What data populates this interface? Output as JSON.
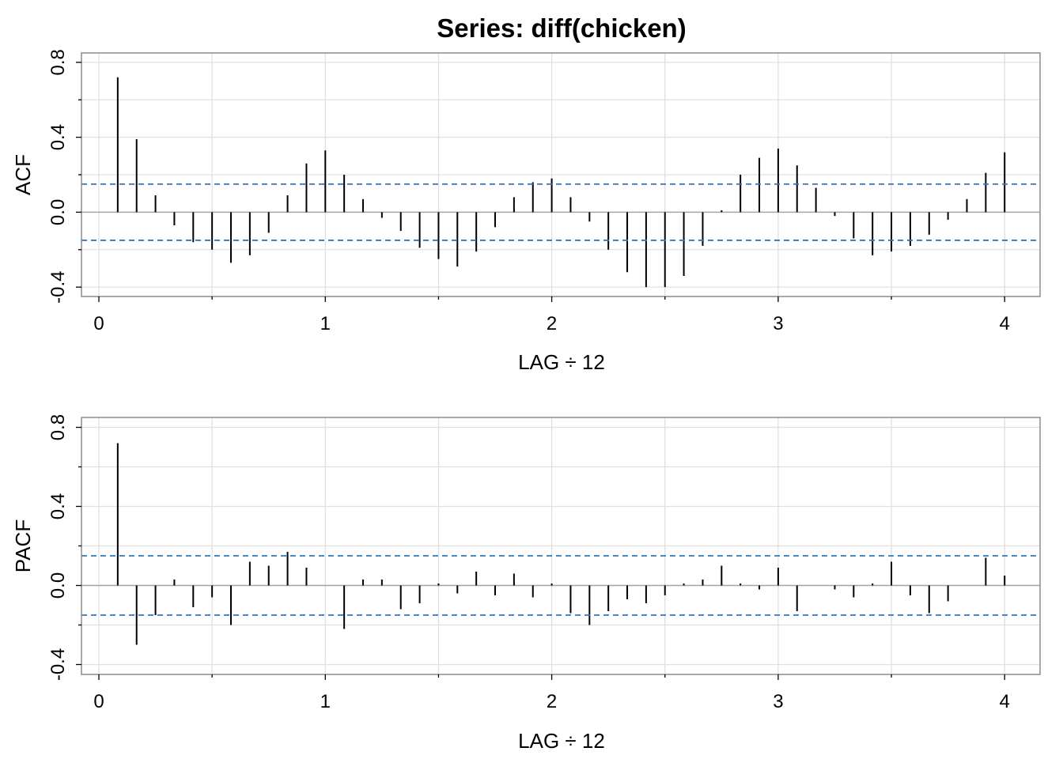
{
  "title": "Series:  diff(chicken)",
  "colors": {
    "panel_border": "#8c8c8c",
    "grid": "#e0e0e0",
    "zero_line": "#a6a6a6",
    "bar": "#000000",
    "ci_line": "#2f77bf"
  },
  "chart_data": [
    {
      "type": "bar",
      "title": "Series:  diff(chicken)",
      "xlabel": "LAG ÷ 12",
      "ylabel": "ACF",
      "xlim": [
        0,
        4.15
      ],
      "ylim": [
        -0.45,
        0.85
      ],
      "xticks": [
        0,
        1,
        2,
        3,
        4
      ],
      "yticks": [
        -0.4,
        0.0,
        0.4,
        0.8
      ],
      "grid": true,
      "ci": 0.15,
      "lags": [
        0.0833,
        0.1667,
        0.25,
        0.3333,
        0.4167,
        0.5,
        0.5833,
        0.6667,
        0.75,
        0.8333,
        0.9167,
        1.0,
        1.0833,
        1.1667,
        1.25,
        1.3333,
        1.4167,
        1.5,
        1.5833,
        1.6667,
        1.75,
        1.8333,
        1.9167,
        2.0,
        2.0833,
        2.1667,
        2.25,
        2.3333,
        2.4167,
        2.5,
        2.5833,
        2.6667,
        2.75,
        2.8333,
        2.9167,
        3.0,
        3.0833,
        3.1667,
        3.25,
        3.3333,
        3.4167,
        3.5,
        3.5833,
        3.6667,
        3.75,
        3.8333,
        3.9167,
        4.0
      ],
      "values": [
        0.72,
        0.39,
        0.09,
        -0.07,
        -0.16,
        -0.2,
        -0.27,
        -0.23,
        -0.11,
        0.09,
        0.26,
        0.33,
        0.2,
        0.07,
        -0.03,
        -0.1,
        -0.19,
        -0.25,
        -0.29,
        -0.21,
        -0.08,
        0.08,
        0.16,
        0.18,
        0.08,
        -0.05,
        -0.2,
        -0.32,
        -0.4,
        -0.4,
        -0.34,
        -0.18,
        0.01,
        0.2,
        0.29,
        0.34,
        0.25,
        0.13,
        -0.02,
        -0.14,
        -0.23,
        -0.21,
        -0.18,
        -0.12,
        -0.04,
        0.07,
        0.21,
        0.32
      ]
    },
    {
      "type": "bar",
      "xlabel": "LAG ÷ 12",
      "ylabel": "PACF",
      "xlim": [
        0,
        4.15
      ],
      "ylim": [
        -0.45,
        0.85
      ],
      "xticks": [
        0,
        1,
        2,
        3,
        4
      ],
      "yticks": [
        -0.4,
        0.0,
        0.4,
        0.8
      ],
      "grid": true,
      "ci": 0.15,
      "lags": [
        0.0833,
        0.1667,
        0.25,
        0.3333,
        0.4167,
        0.5,
        0.5833,
        0.6667,
        0.75,
        0.8333,
        0.9167,
        1.0,
        1.0833,
        1.1667,
        1.25,
        1.3333,
        1.4167,
        1.5,
        1.5833,
        1.6667,
        1.75,
        1.8333,
        1.9167,
        2.0,
        2.0833,
        2.1667,
        2.25,
        2.3333,
        2.4167,
        2.5,
        2.5833,
        2.6667,
        2.75,
        2.8333,
        2.9167,
        3.0,
        3.0833,
        3.1667,
        3.25,
        3.3333,
        3.4167,
        3.5,
        3.5833,
        3.6667,
        3.75,
        3.8333,
        3.9167,
        4.0
      ],
      "values": [
        0.72,
        -0.3,
        -0.15,
        0.03,
        -0.11,
        -0.06,
        -0.2,
        0.12,
        0.1,
        0.17,
        0.09,
        0.0,
        -0.22,
        0.03,
        0.03,
        -0.12,
        -0.09,
        0.01,
        -0.04,
        0.07,
        -0.05,
        0.06,
        -0.06,
        0.01,
        -0.14,
        -0.2,
        -0.13,
        -0.07,
        -0.09,
        -0.05,
        0.01,
        0.03,
        0.1,
        0.01,
        -0.02,
        0.09,
        -0.13,
        0.0,
        -0.02,
        -0.06,
        0.01,
        0.12,
        -0.05,
        -0.14,
        -0.08,
        0.0,
        0.14,
        0.05
      ]
    }
  ]
}
